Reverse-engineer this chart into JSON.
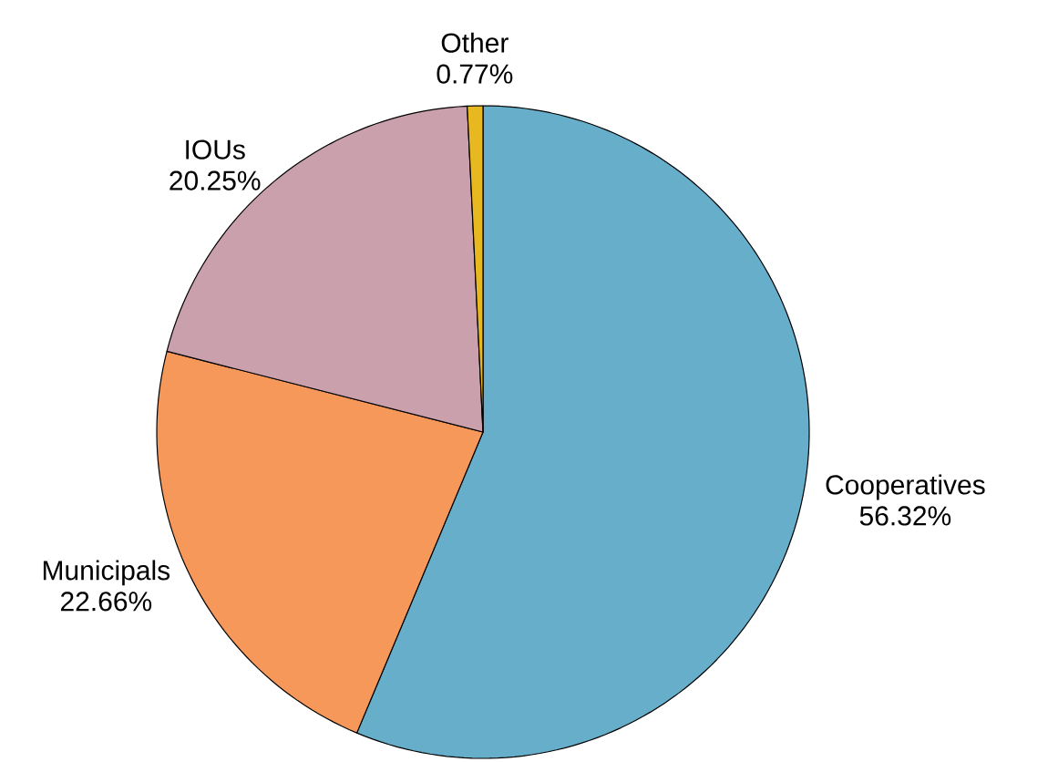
{
  "chart_data": {
    "type": "pie",
    "categories": [
      "Cooperatives",
      "Municipals",
      "IOUs",
      "Other"
    ],
    "values": [
      56.32,
      22.66,
      20.25,
      0.77
    ],
    "value_labels": [
      "56.32%",
      "22.66%",
      "20.25%",
      "0.77%"
    ],
    "colors": [
      "#67aecb",
      "#f5985a",
      "#c9a0ab",
      "#e8b821"
    ]
  }
}
